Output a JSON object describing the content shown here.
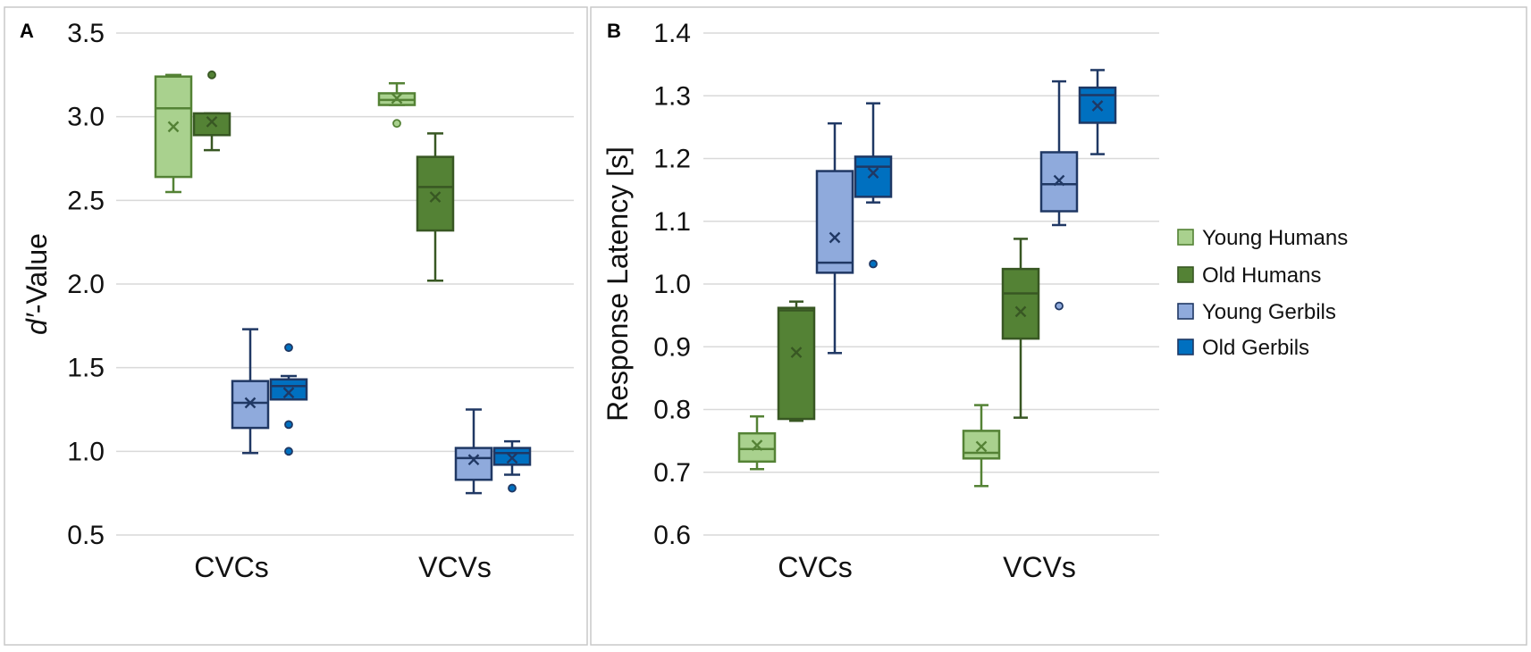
{
  "chart_data": [
    {
      "type": "box",
      "panel_label": "A",
      "ylabel_prefix": "d′",
      "ylabel_suffix": "-Value",
      "ylim": [
        0.5,
        3.5
      ],
      "yticks": [
        "0.5",
        "1.0",
        "1.5",
        "2.0",
        "2.5",
        "3.0",
        "3.5"
      ],
      "ytick_values": [
        0.5,
        1.0,
        1.5,
        2.0,
        2.5,
        3.0,
        3.5
      ],
      "categories": [
        "CVCs",
        "VCVs"
      ],
      "grid": true,
      "series": [
        {
          "name": "Young Humans",
          "boxes": [
            {
              "min": 2.55,
              "q1": 2.64,
              "median": 3.05,
              "q3": 3.24,
              "max": 3.25,
              "mean": 2.94,
              "outliers": []
            },
            {
              "min": 3.07,
              "q1": 3.07,
              "median": 3.1,
              "q3": 3.14,
              "max": 3.2,
              "mean": 3.11,
              "outliers": [
                2.96
              ]
            }
          ]
        },
        {
          "name": "Old Humans",
          "boxes": [
            {
              "min": 2.8,
              "q1": 2.89,
              "median": 2.89,
              "q3": 3.02,
              "max": 3.02,
              "mean": 2.97,
              "outliers": [
                3.25
              ]
            },
            {
              "min": 2.02,
              "q1": 2.32,
              "median": 2.58,
              "q3": 2.76,
              "max": 2.9,
              "mean": 2.52,
              "outliers": []
            }
          ]
        },
        {
          "name": "Young Gerbils",
          "boxes": [
            {
              "min": 0.99,
              "q1": 1.14,
              "median": 1.29,
              "q3": 1.42,
              "max": 1.73,
              "mean": 1.29,
              "outliers": []
            },
            {
              "min": 0.75,
              "q1": 0.83,
              "median": 0.96,
              "q3": 1.02,
              "max": 1.25,
              "mean": 0.95,
              "outliers": []
            }
          ]
        },
        {
          "name": "Old Gerbils",
          "boxes": [
            {
              "min": 1.31,
              "q1": 1.31,
              "median": 1.39,
              "q3": 1.43,
              "max": 1.45,
              "mean": 1.35,
              "outliers": [
                1.62,
                1.16,
                1.0
              ]
            },
            {
              "min": 0.86,
              "q1": 0.92,
              "median": 0.99,
              "q3": 1.02,
              "max": 1.06,
              "mean": 0.96,
              "outliers": [
                0.78
              ]
            }
          ]
        }
      ]
    },
    {
      "type": "box",
      "panel_label": "B",
      "ylabel": "Response Latency [s]",
      "ylim": [
        0.6,
        1.4
      ],
      "yticks": [
        "0.6",
        "0.7",
        "0.8",
        "0.9",
        "1.0",
        "1.1",
        "1.2",
        "1.3",
        "1.4"
      ],
      "ytick_values": [
        0.6,
        0.7,
        0.8,
        0.9,
        1.0,
        1.1,
        1.2,
        1.3,
        1.4
      ],
      "categories": [
        "CVCs",
        "VCVs"
      ],
      "grid": true,
      "series": [
        {
          "name": "Young Humans",
          "boxes": [
            {
              "min": 0.705,
              "q1": 0.717,
              "median": 0.737,
              "q3": 0.762,
              "max": 0.789,
              "mean": 0.743,
              "outliers": []
            },
            {
              "min": 0.678,
              "q1": 0.722,
              "median": 0.731,
              "q3": 0.766,
              "max": 0.807,
              "mean": 0.741,
              "outliers": []
            }
          ]
        },
        {
          "name": "Old Humans",
          "boxes": [
            {
              "min": 0.782,
              "q1": 0.785,
              "median": 0.958,
              "q3": 0.962,
              "max": 0.972,
              "mean": 0.891,
              "outliers": []
            },
            {
              "min": 0.787,
              "q1": 0.913,
              "median": 0.985,
              "q3": 1.024,
              "max": 1.072,
              "mean": 0.956,
              "outliers": []
            }
          ]
        },
        {
          "name": "Young Gerbils",
          "boxes": [
            {
              "min": 0.89,
              "q1": 1.018,
              "median": 1.034,
              "q3": 1.18,
              "max": 1.256,
              "mean": 1.074,
              "outliers": []
            },
            {
              "min": 1.094,
              "q1": 1.116,
              "median": 1.159,
              "q3": 1.21,
              "max": 1.323,
              "mean": 1.165,
              "outliers": [
                0.965
              ]
            }
          ]
        },
        {
          "name": "Old Gerbils",
          "boxes": [
            {
              "min": 1.13,
              "q1": 1.139,
              "median": 1.187,
              "q3": 1.203,
              "max": 1.288,
              "mean": 1.177,
              "outliers": [
                1.032
              ]
            },
            {
              "min": 1.207,
              "q1": 1.257,
              "median": 1.301,
              "q3": 1.313,
              "max": 1.341,
              "mean": 1.284,
              "outliers": []
            }
          ]
        }
      ]
    }
  ],
  "legend": {
    "position": "right",
    "entries": [
      "Young Humans",
      "Old Humans",
      "Young Gerbils",
      "Old Gerbils"
    ]
  },
  "series_colors": [
    {
      "fill": "#a9d18e",
      "stroke": "#548235"
    },
    {
      "fill": "#548235",
      "stroke": "#385723"
    },
    {
      "fill": "#8faadc",
      "stroke": "#203864"
    },
    {
      "fill": "#0070c0",
      "stroke": "#1f3864"
    }
  ]
}
